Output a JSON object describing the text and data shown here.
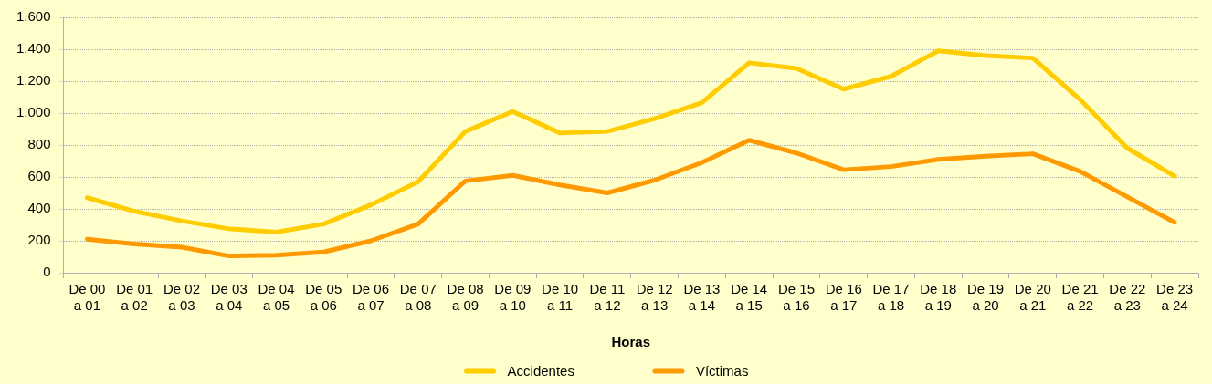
{
  "chart_data": {
    "type": "line",
    "xlabel": "Horas",
    "categories": [
      "De 00 a 01",
      "De 01 a 02",
      "De 02 a 03",
      "De 03 a 04",
      "De 04 a 05",
      "De 05 a 06",
      "De 06 a 07",
      "De 07 a 08",
      "De 08 a 09",
      "De 09 a 10",
      "De 10 a 11",
      "De 11 a 12",
      "De 12 a 13",
      "De 13 a 14",
      "De 14 a 15",
      "De 15 a 16",
      "De 16 a 17",
      "De 17 a 18",
      "De 18 a 19",
      "De 19 a 20",
      "De 20 a 21",
      "De 21 a 22",
      "De 22 a 23",
      "De 23 a 24"
    ],
    "series": [
      {
        "name": "Accidentes",
        "color": "#ffcc00",
        "values": [
          470,
          385,
          325,
          275,
          255,
          305,
          425,
          570,
          885,
          1010,
          875,
          885,
          965,
          1065,
          1315,
          1280,
          1150,
          1230,
          1390,
          1360,
          1345,
          1085,
          780,
          605
        ]
      },
      {
        "name": "Víctimas",
        "color": "#ff9900",
        "values": [
          210,
          180,
          160,
          105,
          110,
          130,
          200,
          305,
          575,
          610,
          550,
          500,
          580,
          690,
          830,
          750,
          645,
          665,
          710,
          730,
          745,
          635,
          475,
          315
        ]
      }
    ],
    "ylim": [
      0,
      1600
    ],
    "yticks": [
      0,
      200,
      400,
      600,
      800,
      {
        "value": 1000,
        "label": "1.000"
      },
      {
        "value": 1200,
        "label": "1.200"
      },
      {
        "value": 1400,
        "label": "1.400"
      },
      {
        "value": 1600,
        "label": "1.600"
      }
    ],
    "grid": "y",
    "legend": "bottom",
    "marker": "none",
    "line_style": "solid"
  }
}
